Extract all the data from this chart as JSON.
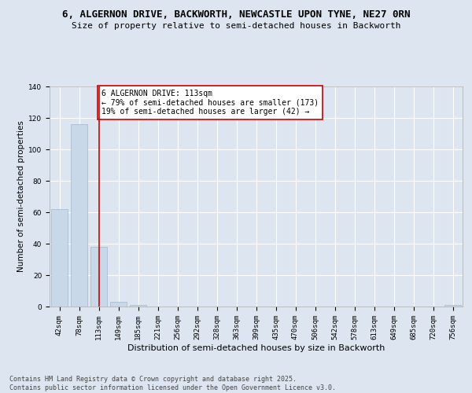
{
  "title_line1": "6, ALGERNON DRIVE, BACKWORTH, NEWCASTLE UPON TYNE, NE27 0RN",
  "title_line2": "Size of property relative to semi-detached houses in Backworth",
  "xlabel": "Distribution of semi-detached houses by size in Backworth",
  "ylabel": "Number of semi-detached properties",
  "categories": [
    "42sqm",
    "78sqm",
    "113sqm",
    "149sqm",
    "185sqm",
    "221sqm",
    "256sqm",
    "292sqm",
    "328sqm",
    "363sqm",
    "399sqm",
    "435sqm",
    "470sqm",
    "506sqm",
    "542sqm",
    "578sqm",
    "613sqm",
    "649sqm",
    "685sqm",
    "720sqm",
    "756sqm"
  ],
  "values": [
    62,
    116,
    38,
    3,
    1,
    0,
    0,
    0,
    0,
    0,
    0,
    0,
    0,
    0,
    0,
    0,
    0,
    0,
    0,
    0,
    1
  ],
  "bar_color": "#c8d8e8",
  "bar_edge_color": "#a0b8cc",
  "vline_x": 2,
  "vline_color": "#cc0000",
  "annotation_text": "6 ALGERNON DRIVE: 113sqm\n← 79% of semi-detached houses are smaller (173)\n19% of semi-detached houses are larger (42) →",
  "annotation_box_color": "#ffffff",
  "annotation_box_edge": "#cc0000",
  "ylim": [
    0,
    140
  ],
  "yticks": [
    0,
    20,
    40,
    60,
    80,
    100,
    120,
    140
  ],
  "background_color": "#dde6f0",
  "plot_bg_color": "#dde6f0",
  "footer_text": "Contains HM Land Registry data © Crown copyright and database right 2025.\nContains public sector information licensed under the Open Government Licence v3.0.",
  "title_fontsize": 9,
  "subtitle_fontsize": 8,
  "axis_label_fontsize": 7.5,
  "tick_fontsize": 6.5,
  "annotation_fontsize": 7,
  "footer_fontsize": 6
}
